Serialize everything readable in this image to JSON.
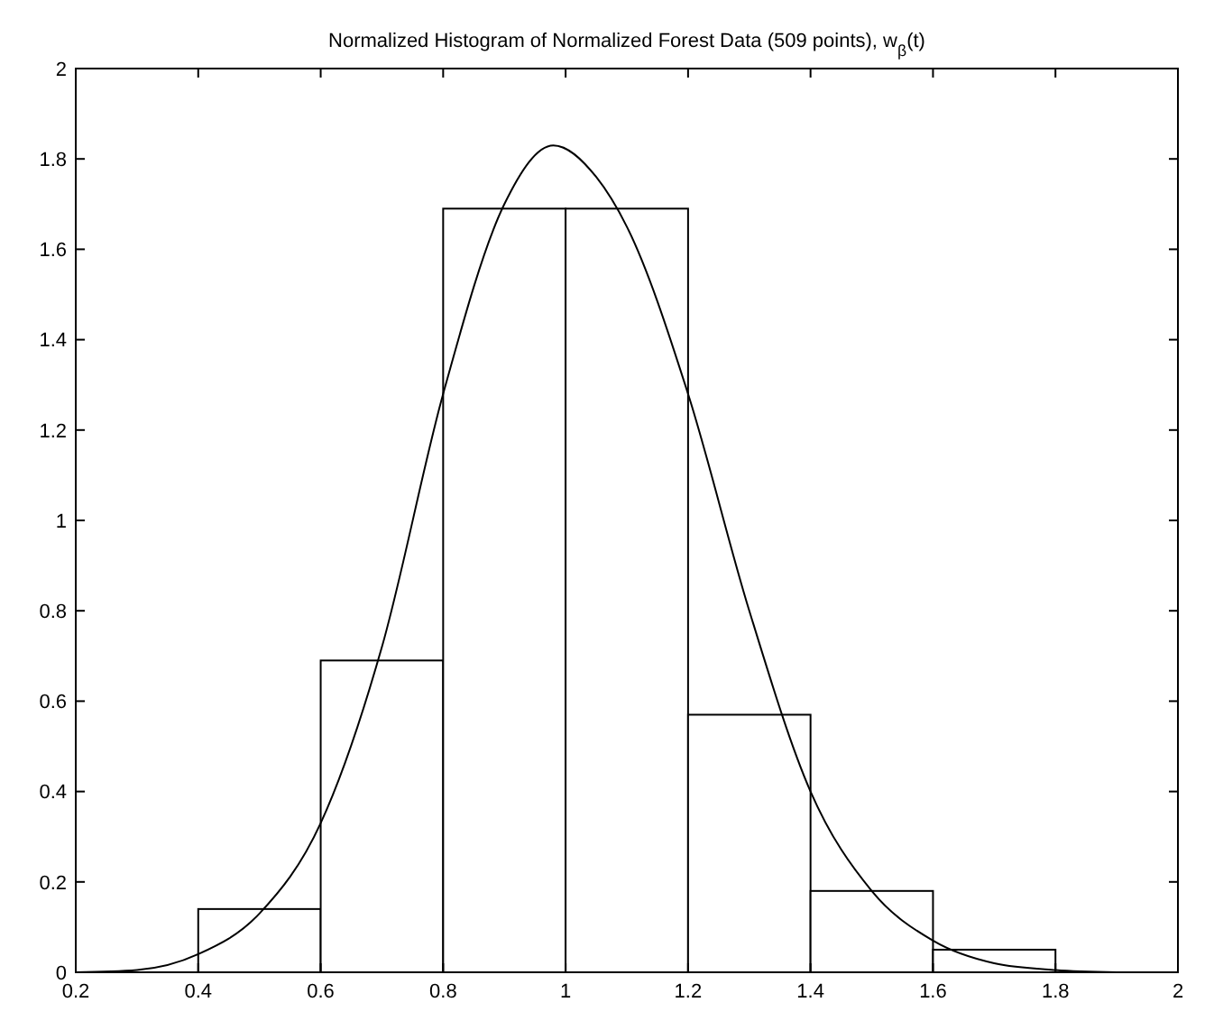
{
  "chart_data": {
    "type": "histogram",
    "title": "Normalized Histogram of Normalized Forest Data (509 points), w$_{β}$(t)",
    "bins": [
      0.4,
      0.6,
      0.8,
      1.0,
      1.2,
      1.4,
      1.6,
      1.8
    ],
    "values": [
      0.14,
      0.69,
      1.69,
      1.69,
      0.57,
      0.18,
      0.05
    ],
    "color": "#000000",
    "series": [
      {
        "type": "line",
        "color": "#000000",
        "x": [
          0.2,
          0.3,
          0.4,
          0.5,
          0.6,
          0.7,
          0.8,
          0.9,
          0.98,
          1.05,
          1.1,
          1.2,
          1.3,
          1.4,
          1.5,
          1.6,
          1.7,
          1.8,
          1.9
        ],
        "values": [
          0,
          0.005,
          0.04,
          0.13,
          0.33,
          0.72,
          1.28,
          1.7,
          1.83,
          1.76,
          1.65,
          1.28,
          0.8,
          0.4,
          0.18,
          0.07,
          0.02,
          0.005,
          0
        ]
      }
    ],
    "xlim": [
      0.2,
      2
    ],
    "xticks": [
      0.2,
      0.4,
      0.6,
      0.8,
      1,
      1.2,
      1.4,
      1.6,
      1.8,
      2
    ],
    "ylim": [
      0,
      2
    ],
    "yticks": [
      0,
      0.2,
      0.4,
      0.6,
      0.8,
      1,
      1.2,
      1.4,
      1.6,
      1.8,
      2
    ],
    "grid": false
  }
}
